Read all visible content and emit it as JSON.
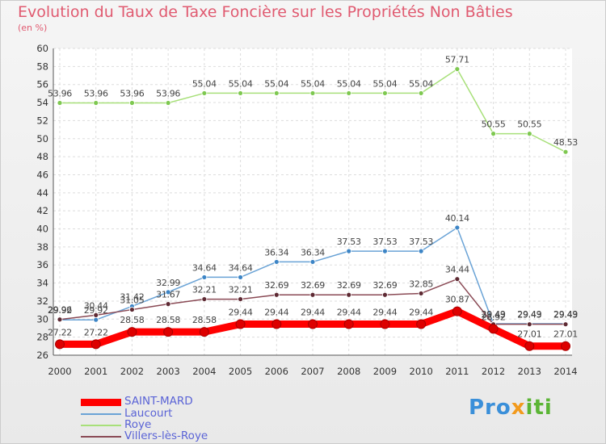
{
  "chart_data": {
    "type": "line",
    "title": "Evolution du Taux de Taxe Foncière sur les Propriétés Non Bâties",
    "subtitle": "(en %)",
    "xlabel": "",
    "ylabel": "",
    "ylim": [
      26,
      60
    ],
    "ytick_step": 2,
    "grid": true,
    "categories": [
      "2000",
      "2001",
      "2002",
      "2003",
      "2004",
      "2005",
      "2006",
      "2007",
      "2008",
      "2009",
      "2010",
      "2011",
      "2012",
      "2013",
      "2014"
    ],
    "series": [
      {
        "name": "SAINT-MARD",
        "color": "#ff0000",
        "marker": "#dd0000",
        "values": [
          27.22,
          27.22,
          28.58,
          28.58,
          28.58,
          29.44,
          29.44,
          29.44,
          29.44,
          29.44,
          29.44,
          30.87,
          28.92,
          27.01,
          27.01
        ],
        "labels": [
          "27.22",
          "27.22",
          "28.58",
          "28.58",
          "28.58",
          "29.44",
          "29.44",
          "29.44",
          "29.44",
          "29.44",
          "29.44",
          "30.87",
          "28.92",
          "27.01",
          "27.01"
        ]
      },
      {
        "name": "Laucourt",
        "color": "#6aa3d6",
        "marker": "#3d85c6",
        "values": [
          29.92,
          29.92,
          31.42,
          32.99,
          34.64,
          34.64,
          36.34,
          36.34,
          37.53,
          37.53,
          37.53,
          40.14,
          29.49,
          29.49,
          29.49
        ],
        "labels": [
          "29.92",
          "29.92",
          "31.42",
          "32.99",
          "34.64",
          "34.64",
          "36.34",
          "36.34",
          "37.53",
          "37.53",
          "37.53",
          "40.14",
          "29.49",
          "29.49",
          "29.49"
        ]
      },
      {
        "name": "Roye",
        "color": "#a8e07a",
        "marker": "#7ec850",
        "values": [
          53.96,
          53.96,
          53.96,
          53.96,
          55.04,
          55.04,
          55.04,
          55.04,
          55.04,
          55.04,
          55.04,
          57.71,
          50.55,
          50.55,
          48.53
        ],
        "labels": [
          "53.96",
          "53.96",
          "53.96",
          "53.96",
          "55.04",
          "55.04",
          "55.04",
          "55.04",
          "55.04",
          "55.04",
          "55.04",
          "57.71",
          "50.55",
          "50.55",
          "48.53"
        ]
      },
      {
        "name": "Villers-lès-Roye",
        "color": "#8a4a55",
        "marker": "#5e2a33",
        "values": [
          29.96,
          30.44,
          31.05,
          31.67,
          32.21,
          32.21,
          32.69,
          32.69,
          32.69,
          32.69,
          32.85,
          34.44,
          29.43,
          29.43,
          29.43
        ],
        "labels": [
          "29.96",
          "30.44",
          "31.05",
          "31.67",
          "32.21",
          "32.21",
          "32.69",
          "32.69",
          "32.69",
          "32.69",
          "32.85",
          "34.44",
          "29.43",
          "29.43",
          "29.43"
        ]
      }
    ]
  },
  "logo": {
    "part1": "Pro",
    "part2": "x",
    "part3": "iti"
  }
}
